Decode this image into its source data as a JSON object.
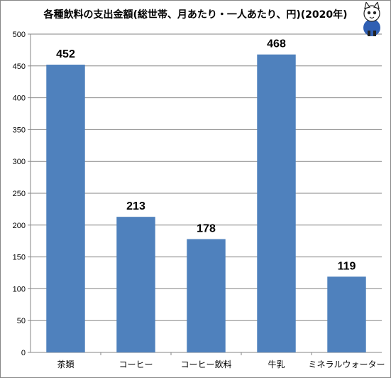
{
  "chart_data": {
    "type": "bar",
    "title": "各種飲料の支出金額(総世帯、月あたり・一人あたり、円)(2020年)",
    "categories": [
      "茶類",
      "コーヒー",
      "コーヒー飲料",
      "牛乳",
      "ミネラルウォーター"
    ],
    "values": [
      452,
      213,
      178,
      468,
      119
    ],
    "data_labels": [
      "452",
      "213",
      "178",
      "468",
      "119"
    ],
    "ylim": [
      0,
      500
    ],
    "yticks": [
      "0",
      "50",
      "100",
      "150",
      "200",
      "250",
      "300",
      "350",
      "400",
      "450",
      "500"
    ],
    "xlabel": "",
    "ylabel": "",
    "grid": true,
    "legend": "none",
    "bar_color": "#4F81BD",
    "grid_color": "#868686"
  },
  "mascot_icon": "cat-mascot-icon"
}
